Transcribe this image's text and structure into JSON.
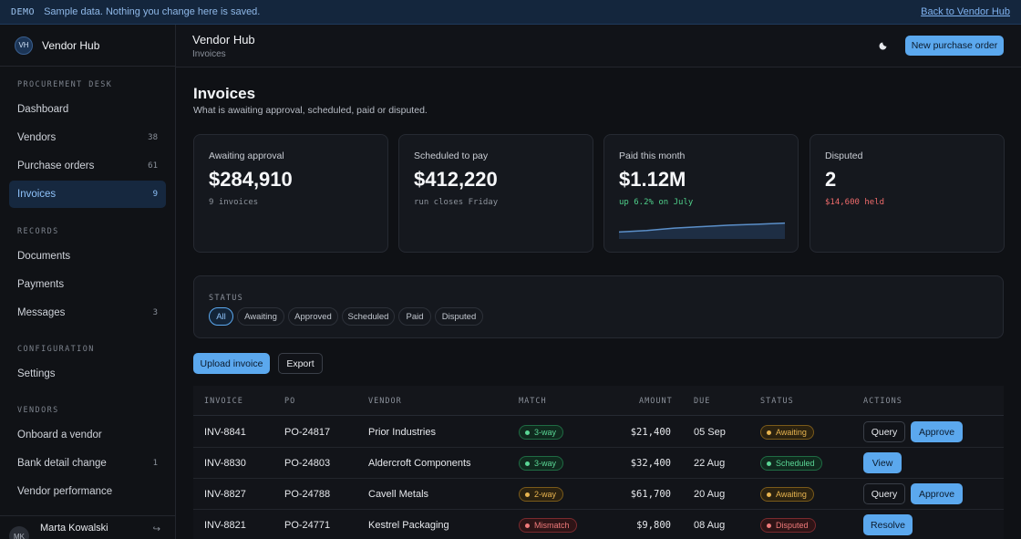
{
  "banner": {
    "tag": "DEMO",
    "message": "Sample data. Nothing you change here is saved.",
    "back_link": "Back to Vendor Hub"
  },
  "brand": {
    "initials": "VH",
    "name": "Vendor Hub"
  },
  "sidebar": {
    "sections": [
      {
        "label": "PROCUREMENT DESK"
      },
      {
        "label": "RECORDS"
      },
      {
        "label": "CONFIGURATION"
      },
      {
        "label": "VENDORS"
      }
    ],
    "items": [
      {
        "label": "Dashboard",
        "count": ""
      },
      {
        "label": "Vendors",
        "count": "38"
      },
      {
        "label": "Purchase orders",
        "count": "61"
      },
      {
        "label": "Invoices",
        "count": "9"
      },
      {
        "label": "Documents",
        "count": ""
      },
      {
        "label": "Payments",
        "count": ""
      },
      {
        "label": "Messages",
        "count": "3"
      },
      {
        "label": "Settings",
        "count": ""
      },
      {
        "label": "Onboard a vendor",
        "count": ""
      },
      {
        "label": "Bank detail change",
        "count": "1"
      },
      {
        "label": "Vendor performance",
        "count": ""
      }
    ],
    "user": {
      "initials": "MK",
      "name": "Marta Kowalski"
    }
  },
  "header": {
    "title": "Vendor Hub",
    "subtitle": "Invoices",
    "new_po_label": "New purchase order",
    "theme_icon": "moon-icon"
  },
  "page": {
    "title": "Invoices",
    "subtitle": "What is awaiting approval, scheduled, paid or disputed."
  },
  "cards": [
    {
      "label": "Awaiting approval",
      "value": "$284,910",
      "note": "9 invoices"
    },
    {
      "label": "Scheduled to pay",
      "value": "$412,220",
      "note": "run closes Friday"
    },
    {
      "label": "Paid this month",
      "value": "$1.12M",
      "note": "up 6.2% on July",
      "trend": [
        0.35,
        0.45,
        0.62,
        0.72,
        0.82,
        0.88,
        0.96
      ]
    },
    {
      "label": "Disputed",
      "value": "2",
      "note": "$14,600 held"
    }
  ],
  "filter": {
    "label": "STATUS",
    "chips": [
      "All",
      "Awaiting",
      "Approved",
      "Scheduled",
      "Paid",
      "Disputed"
    ],
    "selected": "All"
  },
  "toolbar": {
    "upload_label": "Upload invoice",
    "export_label": "Export"
  },
  "table": {
    "columns": [
      "INVOICE",
      "PO",
      "VENDOR",
      "MATCH",
      "AMOUNT",
      "DUE",
      "STATUS",
      "ACTIONS"
    ],
    "rows": [
      {
        "invoice": "INV-8841",
        "po": "PO-24817",
        "vendor": "Prior Industries",
        "match": "3-way",
        "amount": "$21,400",
        "due": "05 Sep",
        "status": "Awaiting",
        "actions": [
          "Query",
          "Approve"
        ]
      },
      {
        "invoice": "INV-8830",
        "po": "PO-24803",
        "vendor": "Aldercroft Components",
        "match": "3-way",
        "amount": "$32,400",
        "due": "22 Aug",
        "status": "Scheduled",
        "actions": [
          "View"
        ]
      },
      {
        "invoice": "INV-8827",
        "po": "PO-24788",
        "vendor": "Cavell Metals",
        "match": "2-way",
        "amount": "$61,700",
        "due": "20 Aug",
        "status": "Awaiting",
        "actions": [
          "Query",
          "Approve"
        ]
      },
      {
        "invoice": "INV-8821",
        "po": "PO-24771",
        "vendor": "Kestrel Packaging",
        "match": "Mismatch",
        "amount": "$9,800",
        "due": "08 Aug",
        "status": "Disputed",
        "actions": [
          "Resolve"
        ]
      }
    ]
  },
  "colors": {
    "accent": "#5ba8ee",
    "green": "#5ad695",
    "amber": "#e8b44f",
    "red": "#f07a7a"
  }
}
